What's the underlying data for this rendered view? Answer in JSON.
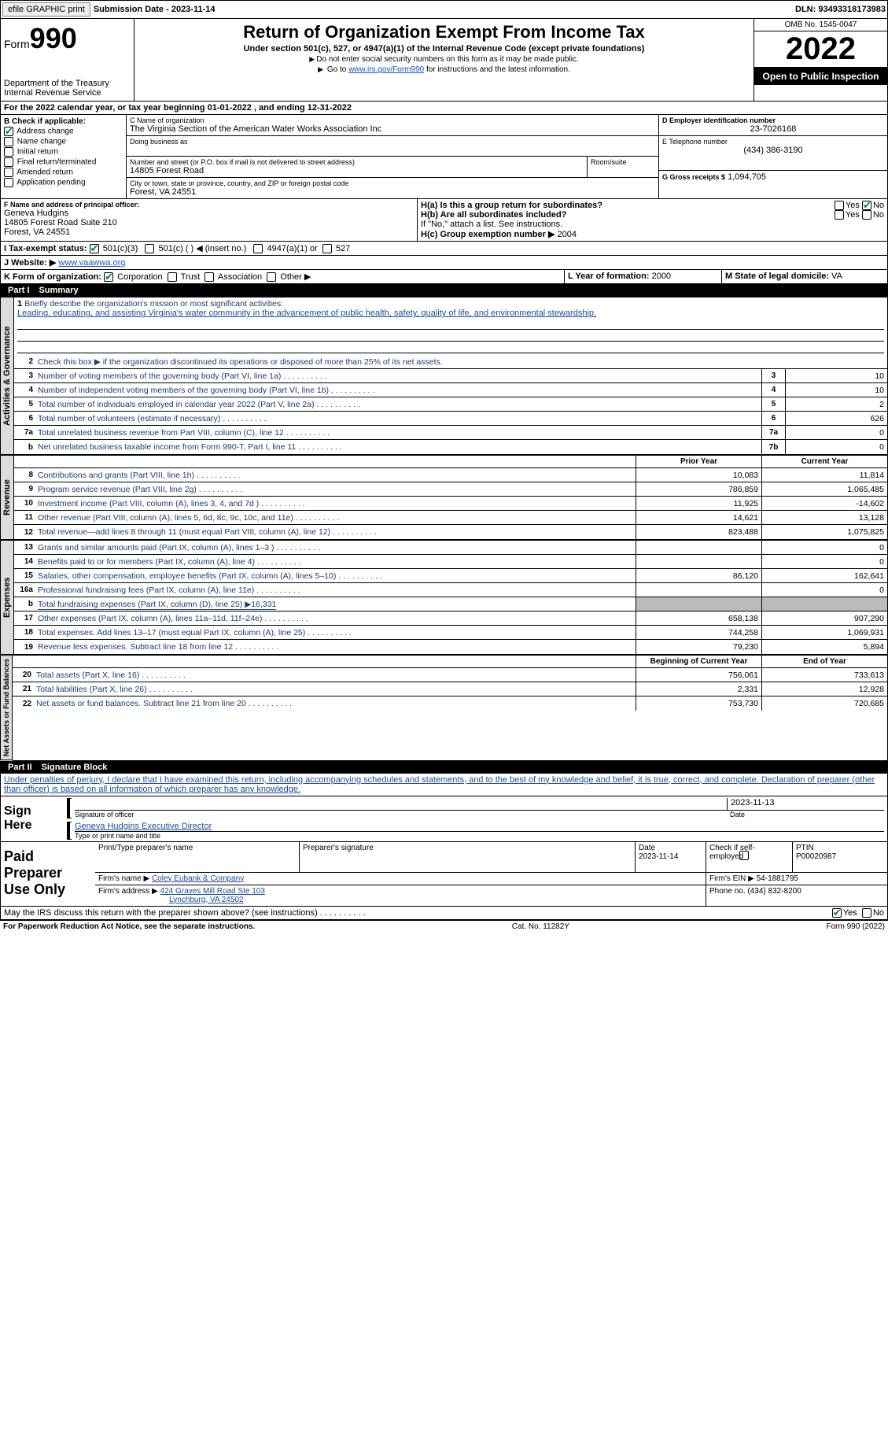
{
  "topbar": {
    "efile": "efile GRAPHIC print",
    "submission": "Submission Date - 2023-11-14",
    "dln": "DLN: 93493318173983"
  },
  "header": {
    "form_label": "Form",
    "form_number": "990",
    "dept": "Department of the Treasury",
    "irs": "Internal Revenue Service",
    "title": "Return of Organization Exempt From Income Tax",
    "subtitle": "Under section 501(c), 527, or 4947(a)(1) of the Internal Revenue Code (except private foundations)",
    "note1": "Do not enter social security numbers on this form as it may be made public.",
    "note2_pre": "Go to ",
    "note2_link": "www.irs.gov/Form990",
    "note2_post": " for instructions and the latest information.",
    "omb": "OMB No. 1545-0047",
    "year": "2022",
    "inspection": "Open to Public Inspection"
  },
  "periodA": "For the 2022 calendar year, or tax year beginning 01-01-2022    , and ending 12-31-2022",
  "sectB": {
    "label": "B Check if applicable:",
    "items": [
      "Address change",
      "Name change",
      "Initial return",
      "Final return/terminated",
      "Amended return",
      "Application pending"
    ],
    "checked": [
      true,
      false,
      false,
      false,
      false,
      false
    ]
  },
  "sectC": {
    "name_label": "C Name of organization",
    "name": "The Virginia Section of the American Water Works Association Inc",
    "dba_label": "Doing business as",
    "dba": "",
    "street_label": "Number and street (or P.O. box if mail is not delivered to street address)",
    "room_label": "Room/suite",
    "street": "14805 Forest Road",
    "city_label": "City or town, state or province, country, and ZIP or foreign postal code",
    "city": "Forest, VA  24551"
  },
  "sectD": {
    "label": "D Employer identification number",
    "value": "23-7026168"
  },
  "sectE": {
    "label": "E Telephone number",
    "value": "(434) 386-3190"
  },
  "sectG": {
    "label": "G Gross receipts $",
    "value": "1,094,705"
  },
  "sectF": {
    "label": "F  Name and address of principal officer:",
    "name": "Geneva Hudgins",
    "addr1": "14805 Forest Road Suite 210",
    "addr2": "Forest, VA  24551"
  },
  "sectH": {
    "a_label": "H(a)  Is this a group return for subordinates?",
    "b_label": "H(b)  Are all subordinates included?",
    "note": "If \"No,\" attach a list. See instructions.",
    "c_label": "H(c)  Group exemption number ▶",
    "c_value": "2004",
    "yes": "Yes",
    "no": "No"
  },
  "sectI": {
    "label": "I    Tax-exempt status:",
    "opts": [
      "501(c)(3)",
      "501(c) (  ) ◀ (insert no.)",
      "4947(a)(1) or",
      "527"
    ]
  },
  "sectJ": {
    "label": "J    Website: ▶",
    "value": "www.vaawwa.org"
  },
  "sectK": {
    "label": "K Form of organization:",
    "opts": [
      "Corporation",
      "Trust",
      "Association",
      "Other ▶"
    ]
  },
  "sectL": {
    "label": "L Year of formation:",
    "value": "2000"
  },
  "sectM": {
    "label": "M State of legal domicile:",
    "value": "VA"
  },
  "part1": {
    "num": "Part I",
    "title": "Summary"
  },
  "summary": {
    "l1_label": "Briefly describe the organization's mission or most significant activities:",
    "l1_text": "Leading, educating, and assisting Virginia's water community in the advancement of public health, safety, quality of life, and environmental stewardship.",
    "l2": "Check this box ▶      if the organization discontinued its operations or disposed of more than 25% of its net assets.",
    "lines_ag": [
      {
        "n": "3",
        "t": "Number of voting members of the governing body (Part VI, line 1a)",
        "b": "3",
        "v": "10"
      },
      {
        "n": "4",
        "t": "Number of independent voting members of the governing body (Part VI, line 1b)",
        "b": "4",
        "v": "10"
      },
      {
        "n": "5",
        "t": "Total number of individuals employed in calendar year 2022 (Part V, line 2a)",
        "b": "5",
        "v": "2"
      },
      {
        "n": "6",
        "t": "Total number of volunteers (estimate if necessary)",
        "b": "6",
        "v": "626"
      },
      {
        "n": "7a",
        "t": "Total unrelated business revenue from Part VIII, column (C), line 12",
        "b": "7a",
        "v": "0"
      },
      {
        "n": "b",
        "t": "Net unrelated business taxable income from Form 990-T, Part I, line 11",
        "b": "7b",
        "v": "0"
      }
    ],
    "col_prior": "Prior Year",
    "col_current": "Current Year",
    "col_begin": "Beginning of Current Year",
    "col_end": "End of Year",
    "rev": [
      {
        "n": "8",
        "t": "Contributions and grants (Part VIII, line 1h)",
        "p": "10,083",
        "c": "11,814"
      },
      {
        "n": "9",
        "t": "Program service revenue (Part VIII, line 2g)",
        "p": "786,859",
        "c": "1,065,485"
      },
      {
        "n": "10",
        "t": "Investment income (Part VIII, column (A), lines 3, 4, and 7d )",
        "p": "11,925",
        "c": "-14,602"
      },
      {
        "n": "11",
        "t": "Other revenue (Part VIII, column (A), lines 5, 6d, 8c, 9c, 10c, and 11e)",
        "p": "14,621",
        "c": "13,128"
      },
      {
        "n": "12",
        "t": "Total revenue—add lines 8 through 11 (must equal Part VIII, column (A), line 12)",
        "p": "823,488",
        "c": "1,075,825"
      }
    ],
    "exp": [
      {
        "n": "13",
        "t": "Grants and similar amounts paid (Part IX, column (A), lines 1–3 )",
        "p": "",
        "c": "0"
      },
      {
        "n": "14",
        "t": "Benefits paid to or for members (Part IX, column (A), line 4)",
        "p": "",
        "c": "0"
      },
      {
        "n": "15",
        "t": "Salaries, other compensation, employee benefits (Part IX, column (A), lines 5–10)",
        "p": "86,120",
        "c": "162,641"
      },
      {
        "n": "16a",
        "t": "Professional fundraising fees (Part IX, column (A), line 11e)",
        "p": "",
        "c": "0"
      },
      {
        "n": "b",
        "t": "Total fundraising expenses (Part IX, column (D), line 25) ▶16,331",
        "shade": true
      },
      {
        "n": "17",
        "t": "Other expenses (Part IX, column (A), lines 11a–11d, 11f–24e)",
        "p": "658,138",
        "c": "907,290"
      },
      {
        "n": "18",
        "t": "Total expenses. Add lines 13–17 (must equal Part IX, column (A), line 25)",
        "p": "744,258",
        "c": "1,069,931"
      },
      {
        "n": "19",
        "t": "Revenue less expenses. Subtract line 18 from line 12",
        "p": "79,230",
        "c": "5,894"
      }
    ],
    "net": [
      {
        "n": "20",
        "t": "Total assets (Part X, line 16)",
        "p": "756,061",
        "c": "733,613"
      },
      {
        "n": "21",
        "t": "Total liabilities (Part X, line 26)",
        "p": "2,331",
        "c": "12,928"
      },
      {
        "n": "22",
        "t": "Net assets or fund balances. Subtract line 21 from line 20",
        "p": "753,730",
        "c": "720,685"
      }
    ]
  },
  "tabs": {
    "ag": "Activities & Governance",
    "rev": "Revenue",
    "exp": "Expenses",
    "net": "Net Assets or Fund Balances"
  },
  "part2": {
    "num": "Part II",
    "title": "Signature Block"
  },
  "penalties": "Under penalties of perjury, I declare that I have examined this return, including accompanying schedules and statements, and to the best of my knowledge and belief, it is true, correct, and complete. Declaration of preparer (other than officer) is based on all information of which preparer has any knowledge.",
  "sign": {
    "here": "Sign Here",
    "sig_label": "Signature of officer",
    "date": "2023-11-13",
    "date_label": "Date",
    "name": "Geneva Hudgins  Executive Director",
    "name_label": "Type or print name and title"
  },
  "paid": {
    "label": "Paid Preparer Use Only",
    "print_label": "Print/Type preparer's name",
    "sig_label": "Preparer's signature",
    "date_label": "Date",
    "date": "2023-11-14",
    "check_label": "Check        if self-employed",
    "ptin_label": "PTIN",
    "ptin": "P00020987",
    "firm_name_label": "Firm's name    ▶",
    "firm_name": "Coley Eubank & Company",
    "firm_ein_label": "Firm's EIN ▶",
    "firm_ein": "54-1881795",
    "firm_addr_label": "Firm's address ▶",
    "firm_addr1": "424 Graves Mill Road Ste 103",
    "firm_addr2": "Lynchburg, VA  24502",
    "phone_label": "Phone no.",
    "phone": "(434) 832-8200"
  },
  "discuss": {
    "text": "May the IRS discuss this return with the preparer shown above? (see instructions)",
    "yes": "Yes",
    "no": "No"
  },
  "footer": {
    "left": "For Paperwork Reduction Act Notice, see the separate instructions.",
    "mid": "Cat. No. 11282Y",
    "right": "Form 990 (2022)"
  }
}
